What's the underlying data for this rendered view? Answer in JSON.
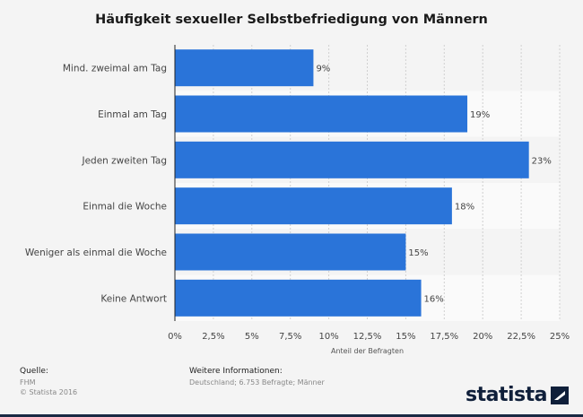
{
  "chart_data": {
    "type": "bar",
    "orientation": "horizontal",
    "title": "Häufigkeit sexueller Selbstbefriedigung von Männern",
    "categories": [
      "Mind. zweimal am Tag",
      "Einmal am Tag",
      "Jeden zweiten Tag",
      "Einmal die Woche",
      "Weniger als einmal die Woche",
      "Keine Antwort"
    ],
    "values": [
      9,
      19,
      23,
      18,
      15,
      16
    ],
    "value_labels": [
      "9%",
      "19%",
      "23%",
      "18%",
      "15%",
      "16%"
    ],
    "xlabel": "Anteil der Befragten",
    "ylabel": "",
    "xlim": [
      0,
      25
    ],
    "xticks": [
      0,
      2.5,
      5,
      7.5,
      10,
      12.5,
      15,
      17.5,
      20,
      22.5,
      25
    ],
    "xtick_labels": [
      "0%",
      "2,5%",
      "5%",
      "7,5%",
      "10%",
      "12,5%",
      "15%",
      "17,5%",
      "20%",
      "22,5%",
      "25%"
    ],
    "bar_color": "#2a74d9",
    "grid": true
  },
  "footer": {
    "source_label": "Quelle:",
    "source_name": "FHM",
    "copyright": "© Statista 2016",
    "info_label": "Weitere Informationen:",
    "info_text": "Deutschland; 6.753 Befragte; Männer"
  },
  "brand": {
    "name": "statista"
  }
}
